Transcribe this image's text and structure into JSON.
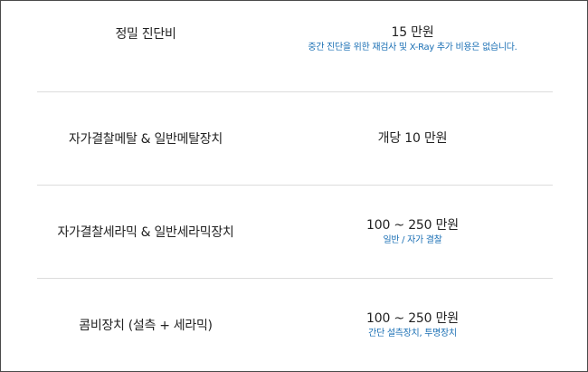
{
  "rows": [
    {
      "label": "정밀 진단비",
      "price": "15 만원",
      "note": "중간 진단을 위한 재검사 및 X-Ray 추가 비용은 없습니다."
    },
    {
      "label": "자가결찰메탈 & 일반메탈장치",
      "price": "개당 10 만원",
      "note": ""
    },
    {
      "label": "자가결찰세라믹 & 일반세라믹장치",
      "price": "100 ~ 250 만원",
      "note": "일반 / 자가 결찰"
    },
    {
      "label": "콤비장치 (설측 + 세라믹)",
      "price": "100 ~ 250 만원",
      "note": "간단 설측장치, 투명장치"
    }
  ],
  "colors": {
    "border": "#4a4a4a",
    "divider": "#dcdcdc",
    "text": "#222222",
    "note": "#1a6fb4"
  }
}
